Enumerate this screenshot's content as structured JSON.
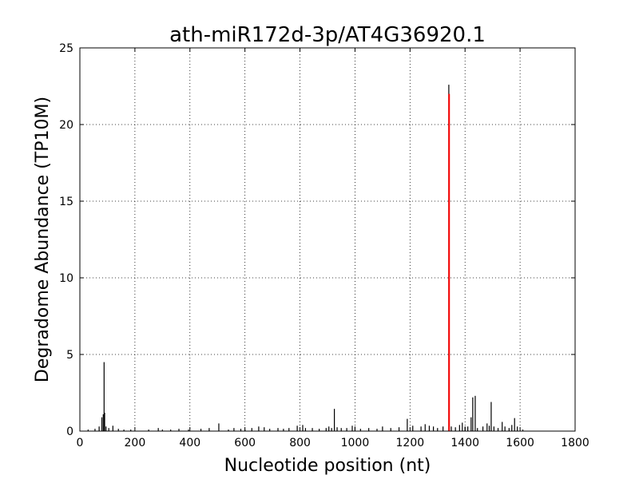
{
  "chart_data": {
    "type": "line",
    "title": "ath-miR172d-3p/AT4G36920.1",
    "xlabel": "Nucleotide position (nt)",
    "ylabel": "Degradome Abundance (TP10M)",
    "xlim": [
      0,
      1800
    ],
    "ylim": [
      0,
      25
    ],
    "x_ticks": [
      0,
      200,
      400,
      600,
      800,
      1000,
      1200,
      1400,
      1600,
      1800
    ],
    "y_ticks": [
      0,
      5,
      10,
      15,
      20,
      25
    ],
    "grid": true,
    "legend": "none",
    "series": [
      {
        "color": "#000000",
        "points": [
          [
            30,
            0.1
          ],
          [
            55,
            0.15
          ],
          [
            70,
            0.3
          ],
          [
            80,
            0.9
          ],
          [
            85,
            1.1
          ],
          [
            88,
            4.5
          ],
          [
            90,
            1.2
          ],
          [
            95,
            0.3
          ],
          [
            105,
            0.2
          ],
          [
            120,
            0.35
          ],
          [
            140,
            0.15
          ],
          [
            160,
            0.1
          ],
          [
            185,
            0.1
          ],
          [
            250,
            0.1
          ],
          [
            285,
            0.2
          ],
          [
            300,
            0.1
          ],
          [
            330,
            0.1
          ],
          [
            360,
            0.15
          ],
          [
            395,
            0.1
          ],
          [
            440,
            0.15
          ],
          [
            470,
            0.2
          ],
          [
            505,
            0.5
          ],
          [
            540,
            0.1
          ],
          [
            560,
            0.2
          ],
          [
            585,
            0.15
          ],
          [
            600,
            0.1
          ],
          [
            625,
            0.2
          ],
          [
            650,
            0.3
          ],
          [
            670,
            0.25
          ],
          [
            690,
            0.15
          ],
          [
            720,
            0.2
          ],
          [
            740,
            0.15
          ],
          [
            760,
            0.2
          ],
          [
            790,
            0.35
          ],
          [
            810,
            0.4
          ],
          [
            820,
            0.2
          ],
          [
            845,
            0.2
          ],
          [
            870,
            0.15
          ],
          [
            895,
            0.2
          ],
          [
            905,
            0.3
          ],
          [
            915,
            0.2
          ],
          [
            925,
            1.45
          ],
          [
            935,
            0.25
          ],
          [
            950,
            0.2
          ],
          [
            970,
            0.2
          ],
          [
            990,
            0.35
          ],
          [
            1000,
            0.3
          ],
          [
            1020,
            0.15
          ],
          [
            1050,
            0.2
          ],
          [
            1080,
            0.15
          ],
          [
            1100,
            0.3
          ],
          [
            1130,
            0.2
          ],
          [
            1160,
            0.25
          ],
          [
            1190,
            0.8
          ],
          [
            1210,
            0.35
          ],
          [
            1240,
            0.3
          ],
          [
            1255,
            0.45
          ],
          [
            1270,
            0.35
          ],
          [
            1285,
            0.3
          ],
          [
            1300,
            0.2
          ],
          [
            1320,
            0.3
          ],
          [
            1341,
            22.6
          ],
          [
            1350,
            0.3
          ],
          [
            1365,
            0.25
          ],
          [
            1380,
            0.4
          ],
          [
            1390,
            0.55
          ],
          [
            1400,
            0.3
          ],
          [
            1410,
            0.3
          ],
          [
            1422,
            0.9
          ],
          [
            1428,
            2.2
          ],
          [
            1437,
            2.3
          ],
          [
            1445,
            0.2
          ],
          [
            1465,
            0.3
          ],
          [
            1480,
            0.5
          ],
          [
            1488,
            0.35
          ],
          [
            1495,
            1.9
          ],
          [
            1505,
            0.3
          ],
          [
            1520,
            0.2
          ],
          [
            1535,
            0.6
          ],
          [
            1545,
            0.3
          ],
          [
            1560,
            0.2
          ],
          [
            1570,
            0.4
          ],
          [
            1580,
            0.85
          ],
          [
            1590,
            0.3
          ],
          [
            1610,
            0.1
          ]
        ]
      },
      {
        "color": "#ff0000",
        "points": [
          [
            1342,
            22.0
          ]
        ]
      }
    ]
  }
}
